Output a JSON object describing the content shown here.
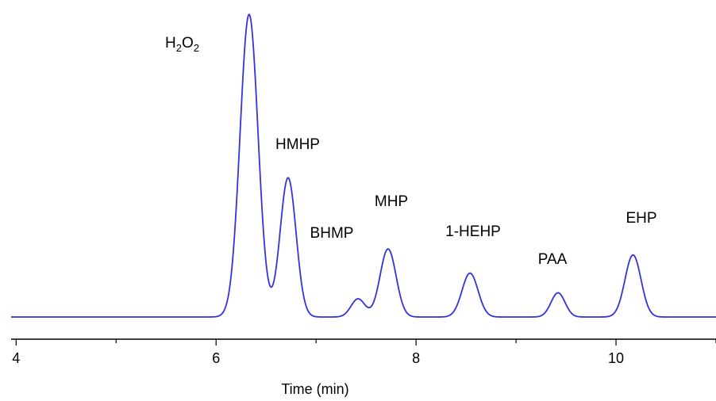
{
  "chart_data": {
    "type": "line",
    "title": "",
    "xlabel": "Time (min)",
    "ylabel": "",
    "xlim": [
      3.95,
      11.0
    ],
    "ylim": [
      0,
      1.0
    ],
    "x_ticks": [
      {
        "value": 4,
        "label": "4"
      },
      {
        "value": 6,
        "label": "6"
      },
      {
        "value": 8,
        "label": "8"
      },
      {
        "value": 10,
        "label": "10"
      }
    ],
    "grid": false,
    "legend": "none",
    "line_color": "#3333dd",
    "baseline": 0.0,
    "peaks": [
      {
        "name": "H2O2",
        "label_main": "H",
        "label_sub1": "2",
        "label_mid": "O",
        "label_sub2": "2",
        "rt": 6.33,
        "height": 1.0,
        "width": 0.09
      },
      {
        "name": "HMHP",
        "label": "HMHP",
        "rt": 6.72,
        "height": 0.46,
        "width": 0.08
      },
      {
        "name": "BHMP",
        "label": "BHMP",
        "rt": 7.42,
        "height": 0.06,
        "width": 0.07
      },
      {
        "name": "MHP",
        "label": "MHP",
        "rt": 7.72,
        "height": 0.225,
        "width": 0.08
      },
      {
        "name": "1-HEHP",
        "label": "1-HEHP",
        "rt": 8.54,
        "height": 0.145,
        "width": 0.08
      },
      {
        "name": "PAA",
        "label": "PAA",
        "rt": 9.42,
        "height": 0.08,
        "width": 0.07
      },
      {
        "name": "EHP",
        "label": "EHP",
        "rt": 10.17,
        "height": 0.205,
        "width": 0.08
      }
    ]
  }
}
